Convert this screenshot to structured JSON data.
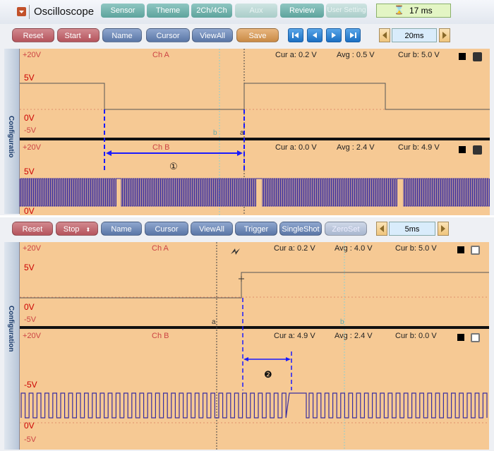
{
  "top": {
    "title": "Oscilloscope",
    "tabs": [
      "Sensor",
      "Theme",
      "2Ch/4Ch",
      "Aux",
      "Review",
      "User Setting"
    ],
    "timer": "17 ms",
    "controls": {
      "reset": "Reset",
      "start": "Start",
      "name": "Name",
      "cursor": "Cursor",
      "viewall": "ViewAll",
      "save": "Save"
    },
    "timebase": "20ms",
    "sidebar_label": "Configuratio",
    "chA": {
      "name": "Ch A",
      "top": "+20V",
      "mid": "5V",
      "zero": "0V",
      "neg": "-5V",
      "cur_a": "Cur a: 0.2 V",
      "avg": "Avg : 0.5 V",
      "cur_b": "Cur b: 5.0 V"
    },
    "chB": {
      "name": "Ch B",
      "top": "+20V",
      "mid": "5V",
      "zero": "0V",
      "cur_a": "Cur a: 0.0 V",
      "avg": "Avg : 2.4 V",
      "cur_b": "Cur b: 4.9 V"
    },
    "cursor_a": "a",
    "cursor_b": "b",
    "annotation": "①"
  },
  "bottom": {
    "controls": {
      "reset": "Reset",
      "stop": "Stop",
      "name": "Name",
      "cursor": "Cursor",
      "viewall": "ViewAll",
      "trigger": "Trigger",
      "singleshot": "SingleShot",
      "zeroset": "ZeroSet"
    },
    "timebase": "5ms",
    "sidebar_label": "Configuration",
    "chA": {
      "name": "Ch A",
      "top": "+20V",
      "mid": "5V",
      "zero": "0V",
      "neg": "-5V",
      "cur_a": "Cur a: 0.2 V",
      "avg": "Avg : 4.0 V",
      "cur_b": "Cur b: 5.0 V"
    },
    "chB": {
      "name": "Ch B",
      "top": "+20V",
      "mid": "-5V",
      "zero": "0V",
      "neg": "-5V",
      "cur_a": "Cur a: 4.9 V",
      "avg": "Avg : 2.4 V",
      "cur_b": "Cur b: 0.0 V"
    },
    "cursor_a": "a",
    "cursor_b": "b",
    "annotation": "❷"
  },
  "colors": {
    "plot_bg": "#f6c994",
    "trace_a": "#555555",
    "trace_b": "#3a2ea0",
    "annotation": "#1a1aff"
  }
}
